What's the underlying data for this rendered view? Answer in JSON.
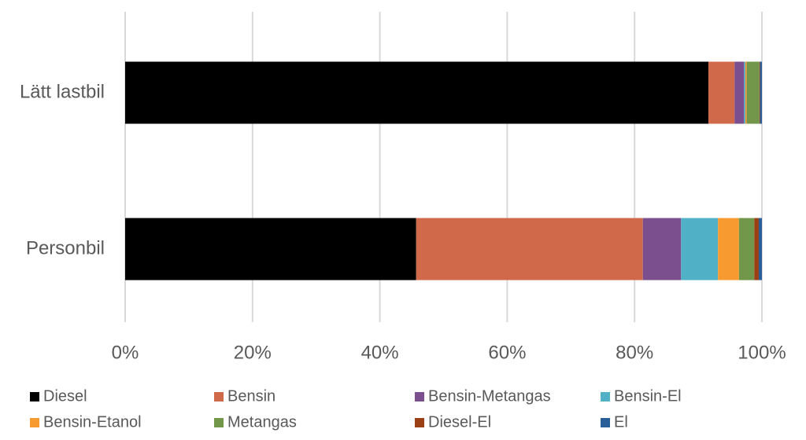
{
  "chart_data": {
    "type": "stacked-barh",
    "categories": [
      "Lätt lastbil",
      "Personbil"
    ],
    "series": [
      {
        "name": "Diesel",
        "color": "#000000",
        "values": [
          91.6,
          45.7
        ]
      },
      {
        "name": "Bensin",
        "color": "#d0694a",
        "values": [
          4.1,
          35.6
        ]
      },
      {
        "name": "Bensin-Metangas",
        "color": "#7b4f8e",
        "values": [
          1.5,
          6.0
        ]
      },
      {
        "name": "Bensin-El",
        "color": "#4fb0c6",
        "values": [
          0.2,
          5.8
        ]
      },
      {
        "name": "Bensin-Etanol",
        "color": "#f79a2f",
        "values": [
          0.2,
          3.3
        ]
      },
      {
        "name": "Metangas",
        "color": "#72964a",
        "values": [
          2.0,
          2.4
        ]
      },
      {
        "name": "Diesel-El",
        "color": "#9b3f14",
        "values": [
          0.1,
          0.7
        ]
      },
      {
        "name": "El",
        "color": "#2a5e98",
        "values": [
          0.3,
          0.5
        ]
      }
    ],
    "xlim": [
      0,
      100
    ],
    "xticks": [
      {
        "value": 0,
        "label": "0%"
      },
      {
        "value": 20,
        "label": "20%"
      },
      {
        "value": 40,
        "label": "40%"
      },
      {
        "value": 60,
        "label": "60%"
      },
      {
        "value": 80,
        "label": "80%"
      },
      {
        "value": 100,
        "label": "100%"
      }
    ],
    "grid": true,
    "legend": "bottom"
  }
}
